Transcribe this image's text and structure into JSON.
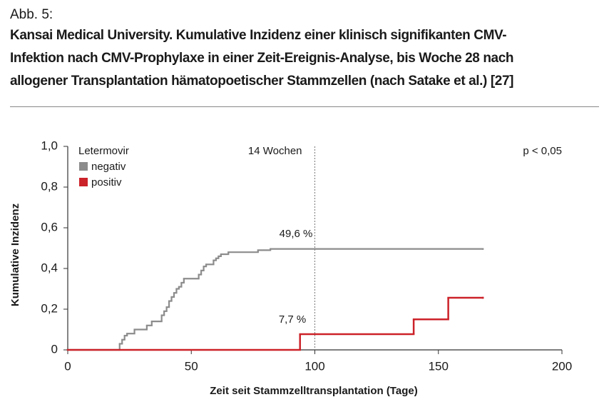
{
  "header": {
    "label": "Abb. 5:",
    "title_lines": [
      "Kansai Medical University. Kumulative Inzidenz einer klinisch signifikanten CMV-",
      "Infektion nach CMV-Prophylaxe in einer Zeit-Ereignis-Analyse, bis Woche 28 nach",
      "allogener Transplantation hämatopoetischer Stammzellen (nach Satake et al.) [27]"
    ]
  },
  "chart_data": {
    "type": "step",
    "x_label": "Zeit seit Stammzelltransplantation (Tage)",
    "y_label": "Kumulative Inzidenz",
    "legend_title": "Letermovir",
    "xlim": [
      0,
      200
    ],
    "xticks": [
      0,
      50,
      100,
      150,
      200
    ],
    "ylim": [
      0,
      1
    ],
    "yticks": [
      0,
      {
        "value": 0.2,
        "label": "0,2"
      },
      {
        "value": 0.4,
        "label": "0,4"
      },
      {
        "value": 0.6,
        "label": "0,6"
      },
      {
        "value": 0.8,
        "label": "0,8"
      },
      {
        "value": 1,
        "label": "1,0"
      }
    ],
    "vline": {
      "x": 100,
      "label": "14 Wochen"
    },
    "p_value": "p < 0,05",
    "series": [
      {
        "name": "negativ",
        "color": "#8c8c8c",
        "x": [
          0,
          21,
          22,
          23,
          24,
          27,
          32,
          34,
          38,
          39,
          40,
          41,
          42,
          43,
          44,
          45,
          46,
          47,
          53,
          54,
          55,
          56,
          59,
          60,
          61,
          62,
          65,
          77,
          82,
          168
        ],
        "values": [
          0,
          0.03,
          0.05,
          0.07,
          0.08,
          0.1,
          0.12,
          0.14,
          0.17,
          0.19,
          0.21,
          0.24,
          0.26,
          0.28,
          0.3,
          0.31,
          0.33,
          0.35,
          0.37,
          0.39,
          0.41,
          0.42,
          0.44,
          0.45,
          0.46,
          0.47,
          0.48,
          0.49,
          0.496,
          0.496
        ],
        "end_label": "49,6 %"
      },
      {
        "name": "positiv",
        "color": "#cc2229",
        "x": [
          0,
          94,
          140,
          154,
          168
        ],
        "values": [
          0,
          0.077,
          0.15,
          0.256,
          0.256
        ],
        "end_label": "7,7 %"
      }
    ]
  }
}
